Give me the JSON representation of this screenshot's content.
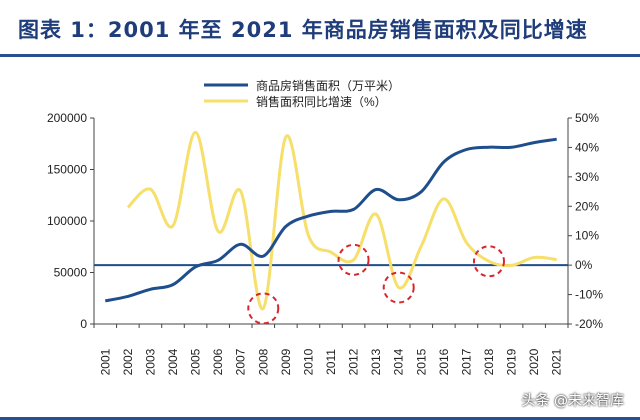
{
  "title": "图表 1：2001 年至 2021 年商品房销售面积及同比增速",
  "watermark": "头条 @未来智库",
  "colors": {
    "area": "#1f4e8c",
    "growth": "#f6df6a",
    "title": "#1f3d7a",
    "rule": "#2a4f8f",
    "marker": "#d9262c"
  },
  "chart_data": {
    "type": "line",
    "x": [
      "2001",
      "2002",
      "2003",
      "2004",
      "2005",
      "2006",
      "2007",
      "2008",
      "2009",
      "2010",
      "2011",
      "2012",
      "2013",
      "2014",
      "2015",
      "2016",
      "2017",
      "2018",
      "2019",
      "2020",
      "2021"
    ],
    "legend_position": "top",
    "grid": false,
    "series": [
      {
        "name": "商品房销售面积（万平米）",
        "axis": "left",
        "color": "#1f4e8c",
        "values": [
          22412,
          26808,
          33718,
          38232,
          55486,
          61857,
          77355,
          65970,
          94755,
          104765,
          109366,
          111304,
          130551,
          120649,
          128495,
          157349,
          169408,
          171654,
          171558,
          176086,
          179433
        ]
      },
      {
        "name": "销售面积同比增速（%）",
        "axis": "right",
        "color": "#f6df6a",
        "values": [
          null,
          19.6,
          25.8,
          13.4,
          45.1,
          11.5,
          25.1,
          -14.7,
          43.6,
          10.1,
          4.4,
          1.8,
          17.3,
          -7.6,
          6.5,
          22.5,
          7.7,
          1.3,
          -0.1,
          2.6,
          1.9
        ]
      }
    ],
    "y_left": {
      "ylim": [
        0,
        200000
      ],
      "ticks": [
        "0",
        "50000",
        "100000",
        "150000",
        "200000"
      ]
    },
    "y_right": {
      "ylim": [
        -20,
        50
      ],
      "ticks": [
        "-20%",
        "-10%",
        "0%",
        "10%",
        "20%",
        "30%",
        "40%",
        "50%"
      ]
    },
    "reference_line": {
      "axis": "right",
      "value": 0
    },
    "highlight_circles": [
      {
        "x": "2008",
        "series": 1
      },
      {
        "x": "2012",
        "series": 1
      },
      {
        "x": "2014",
        "series": 1
      },
      {
        "x": "2018",
        "series": 1
      }
    ]
  }
}
